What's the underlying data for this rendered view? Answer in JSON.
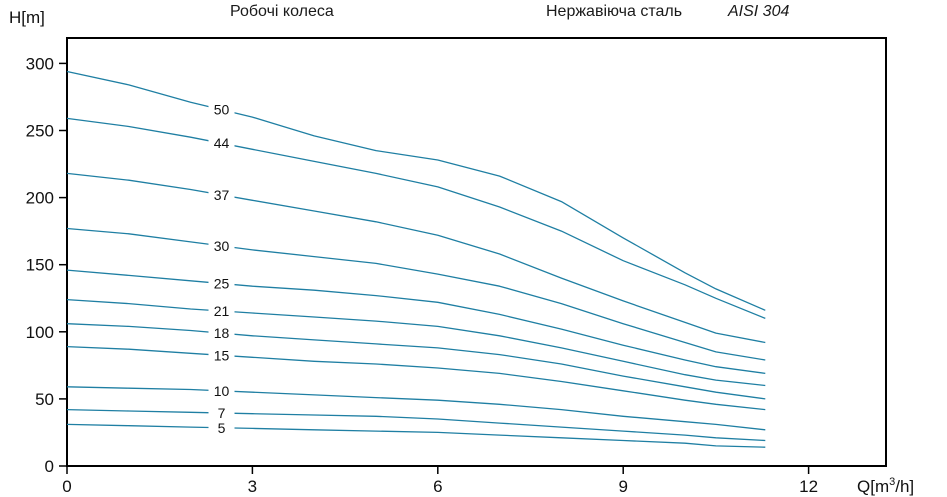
{
  "header": {
    "impellers_label": "Робочі колеса",
    "material_label": "Нержавіюча сталь",
    "material_grade": "AISI 304"
  },
  "chart_data": {
    "type": "line",
    "ylabel": "H[m]",
    "xlabel_prefix": "Q[m",
    "xlabel_sup": "3",
    "xlabel_suffix": "/h]",
    "xlim": [
      0,
      12
    ],
    "ylim": [
      0,
      300
    ],
    "x_ticks": [
      0,
      3,
      6,
      9,
      12
    ],
    "y_ticks": [
      0,
      50,
      100,
      150,
      200,
      250,
      300
    ],
    "grid": false,
    "line_color": "#1f7fa3",
    "series": [
      {
        "name": "50",
        "label_x": 2.5,
        "points": [
          [
            0,
            294
          ],
          [
            1,
            284
          ],
          [
            2,
            271
          ],
          [
            3,
            260
          ],
          [
            4,
            246
          ],
          [
            5,
            235
          ],
          [
            6,
            228
          ],
          [
            7,
            216
          ],
          [
            8,
            197
          ],
          [
            9,
            170
          ],
          [
            10,
            144
          ],
          [
            10.5,
            132
          ],
          [
            11.3,
            116
          ]
        ]
      },
      {
        "name": "44",
        "label_x": 2.5,
        "points": [
          [
            0,
            259
          ],
          [
            1,
            253
          ],
          [
            2,
            245
          ],
          [
            3,
            236
          ],
          [
            4,
            227
          ],
          [
            5,
            218
          ],
          [
            6,
            208
          ],
          [
            7,
            193
          ],
          [
            8,
            175
          ],
          [
            9,
            153
          ],
          [
            10,
            135
          ],
          [
            10.5,
            125
          ],
          [
            11.3,
            110
          ]
        ]
      },
      {
        "name": "37",
        "label_x": 2.5,
        "points": [
          [
            0,
            218
          ],
          [
            1,
            213
          ],
          [
            2,
            206
          ],
          [
            3,
            198
          ],
          [
            4,
            190
          ],
          [
            5,
            182
          ],
          [
            6,
            172
          ],
          [
            7,
            158
          ],
          [
            8,
            140
          ],
          [
            9,
            123
          ],
          [
            10,
            107
          ],
          [
            10.5,
            99
          ],
          [
            11.3,
            92
          ]
        ]
      },
      {
        "name": "30",
        "label_x": 2.5,
        "points": [
          [
            0,
            177
          ],
          [
            1,
            173
          ],
          [
            2,
            167
          ],
          [
            3,
            161
          ],
          [
            4,
            156
          ],
          [
            5,
            151
          ],
          [
            6,
            143
          ],
          [
            7,
            134
          ],
          [
            8,
            121
          ],
          [
            9,
            106
          ],
          [
            10,
            92
          ],
          [
            10.5,
            85
          ],
          [
            11.3,
            79
          ]
        ]
      },
      {
        "name": "25",
        "label_x": 2.5,
        "points": [
          [
            0,
            146
          ],
          [
            1,
            142
          ],
          [
            2,
            138
          ],
          [
            3,
            134
          ],
          [
            4,
            131
          ],
          [
            5,
            127
          ],
          [
            6,
            122
          ],
          [
            7,
            113
          ],
          [
            8,
            102
          ],
          [
            9,
            90
          ],
          [
            10,
            79
          ],
          [
            10.5,
            74
          ],
          [
            11.3,
            69
          ]
        ]
      },
      {
        "name": "21",
        "label_x": 2.5,
        "points": [
          [
            0,
            124
          ],
          [
            1,
            121
          ],
          [
            2,
            117
          ],
          [
            3,
            114
          ],
          [
            4,
            111
          ],
          [
            5,
            108
          ],
          [
            6,
            104
          ],
          [
            7,
            97
          ],
          [
            8,
            88
          ],
          [
            9,
            78
          ],
          [
            10,
            68
          ],
          [
            10.5,
            64
          ],
          [
            11.3,
            60
          ]
        ]
      },
      {
        "name": "18",
        "label_x": 2.5,
        "points": [
          [
            0,
            106
          ],
          [
            1,
            104
          ],
          [
            2,
            101
          ],
          [
            3,
            97
          ],
          [
            4,
            94
          ],
          [
            5,
            91
          ],
          [
            6,
            88
          ],
          [
            7,
            83
          ],
          [
            8,
            76
          ],
          [
            9,
            67
          ],
          [
            10,
            59
          ],
          [
            10.5,
            55
          ],
          [
            11.3,
            50
          ]
        ]
      },
      {
        "name": "15",
        "label_x": 2.5,
        "points": [
          [
            0,
            89
          ],
          [
            1,
            87
          ],
          [
            2,
            84
          ],
          [
            3,
            81
          ],
          [
            4,
            78
          ],
          [
            5,
            76
          ],
          [
            6,
            73
          ],
          [
            7,
            69
          ],
          [
            8,
            63
          ],
          [
            9,
            56
          ],
          [
            10,
            49
          ],
          [
            10.5,
            46
          ],
          [
            11.3,
            42
          ]
        ]
      },
      {
        "name": "10",
        "label_x": 2.5,
        "points": [
          [
            0,
            59
          ],
          [
            1,
            58
          ],
          [
            2,
            57
          ],
          [
            3,
            55
          ],
          [
            4,
            53
          ],
          [
            5,
            51
          ],
          [
            6,
            49
          ],
          [
            7,
            46
          ],
          [
            8,
            42
          ],
          [
            9,
            37
          ],
          [
            10,
            33
          ],
          [
            10.5,
            31
          ],
          [
            11.3,
            27
          ]
        ]
      },
      {
        "name": "7",
        "label_x": 2.5,
        "points": [
          [
            0,
            42
          ],
          [
            1,
            41
          ],
          [
            2,
            40
          ],
          [
            3,
            39
          ],
          [
            4,
            38
          ],
          [
            5,
            37
          ],
          [
            6,
            35
          ],
          [
            7,
            32
          ],
          [
            8,
            29
          ],
          [
            9,
            26
          ],
          [
            10,
            23
          ],
          [
            10.5,
            21
          ],
          [
            11.3,
            19
          ]
        ]
      },
      {
        "name": "5",
        "label_x": 2.5,
        "points": [
          [
            0,
            31
          ],
          [
            1,
            30
          ],
          [
            2,
            29
          ],
          [
            3,
            28
          ],
          [
            4,
            27
          ],
          [
            5,
            26
          ],
          [
            6,
            25
          ],
          [
            7,
            23
          ],
          [
            8,
            21
          ],
          [
            9,
            19
          ],
          [
            10,
            17
          ],
          [
            10.5,
            15
          ],
          [
            11.3,
            14
          ]
        ]
      }
    ]
  }
}
